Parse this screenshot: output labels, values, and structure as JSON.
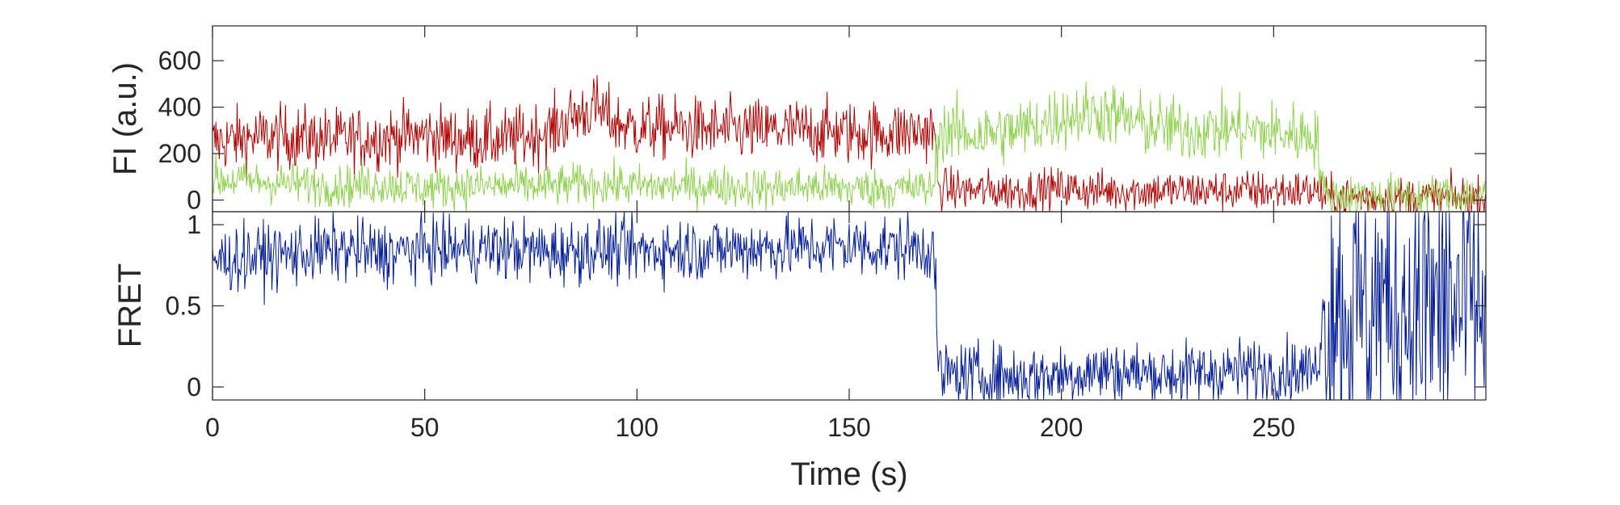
{
  "chart_data": [
    {
      "type": "line",
      "ylabel": "FI (a.u.)",
      "xlim": [
        0,
        300
      ],
      "ylim": [
        -50,
        750
      ],
      "yticks": [
        0,
        200,
        400,
        600
      ],
      "ytick_labels": [
        "0",
        "200",
        "400",
        "600"
      ],
      "grid": false,
      "series": [
        {
          "color": "#b00000",
          "x": [
            0,
            10,
            20,
            30,
            40,
            50,
            60,
            70,
            80,
            85,
            90,
            95,
            100,
            110,
            120,
            130,
            140,
            150,
            160,
            170,
            171,
            180,
            190,
            200,
            210,
            220,
            230,
            240,
            250,
            260,
            262,
            270,
            280,
            290,
            300
          ],
          "values": [
            250,
            270,
            270,
            260,
            270,
            280,
            260,
            260,
            300,
            360,
            400,
            330,
            310,
            310,
            300,
            300,
            300,
            290,
            290,
            300,
            50,
            40,
            40,
            50,
            40,
            40,
            40,
            40,
            40,
            40,
            10,
            10,
            10,
            10,
            10
          ]
        },
        {
          "color": "#8fd14f",
          "x": [
            0,
            10,
            20,
            30,
            40,
            50,
            60,
            70,
            80,
            90,
            100,
            110,
            120,
            130,
            140,
            150,
            160,
            170,
            171,
            180,
            190,
            200,
            210,
            220,
            230,
            240,
            250,
            260,
            262,
            270,
            280,
            290,
            300
          ],
          "values": [
            90,
            80,
            70,
            60,
            70,
            50,
            60,
            60,
            60,
            70,
            60,
            60,
            60,
            50,
            60,
            50,
            50,
            50,
            300,
            280,
            300,
            360,
            380,
            320,
            300,
            310,
            290,
            280,
            20,
            20,
            20,
            20,
            20
          ]
        }
      ]
    },
    {
      "type": "line",
      "xlabel": "Time (s)",
      "ylabel": "FRET",
      "xlim": [
        0,
        300
      ],
      "ylim": [
        -0.08,
        1.08
      ],
      "xticks": [
        0,
        50,
        100,
        150,
        200,
        250
      ],
      "xtick_labels": [
        "0",
        "50",
        "100",
        "150",
        "200",
        "250"
      ],
      "yticks": [
        0,
        0.5,
        1
      ],
      "ytick_labels": [
        "0",
        "0.5",
        "1"
      ],
      "grid": false,
      "series": [
        {
          "color": "#001a96",
          "x": [
            0,
            10,
            20,
            30,
            40,
            50,
            60,
            70,
            80,
            90,
            100,
            110,
            120,
            130,
            140,
            150,
            160,
            170,
            171,
            180,
            190,
            200,
            210,
            220,
            230,
            240,
            250,
            260,
            262,
            270,
            280,
            290,
            300
          ],
          "values": [
            0.78,
            0.8,
            0.82,
            0.85,
            0.82,
            0.85,
            0.85,
            0.85,
            0.83,
            0.85,
            0.84,
            0.85,
            0.85,
            0.86,
            0.86,
            0.87,
            0.86,
            0.86,
            0.08,
            0.07,
            0.06,
            0.08,
            0.1,
            0.08,
            0.08,
            0.1,
            0.1,
            0.1,
            0.5,
            0.5,
            0.5,
            0.5,
            0.5
          ]
        }
      ]
    }
  ]
}
